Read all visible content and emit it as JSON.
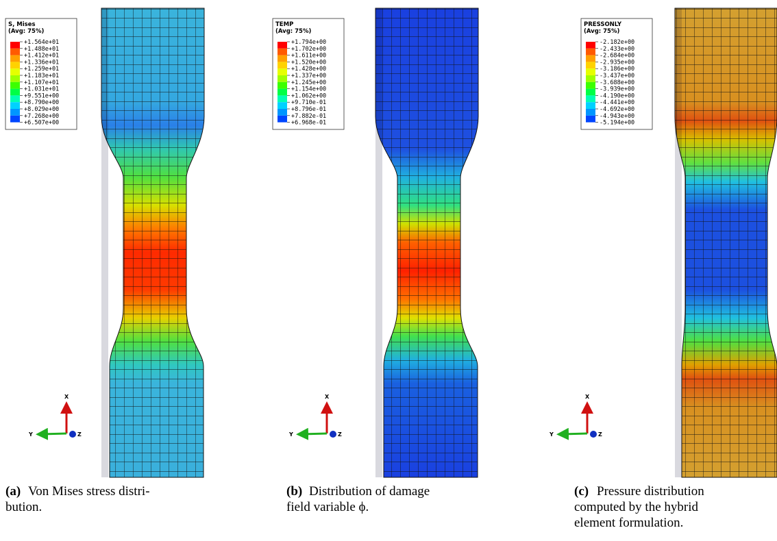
{
  "panels": [
    {
      "legend": {
        "title": "S, Mises",
        "subtitle": "(Avg: 75%)",
        "values": [
          "+1.564e+01",
          "+1.488e+01",
          "+1.412e+01",
          "+1.336e+01",
          "+1.259e+01",
          "+1.183e+01",
          "+1.107e+01",
          "+1.031e+01",
          "+9.551e+00",
          "+8.790e+00",
          "+8.029e+00",
          "+7.268e+00",
          "+6.507e+00"
        ]
      },
      "triad": {
        "x": "X",
        "y": "Y",
        "z": "Z"
      },
      "caption": {
        "label": "(a)",
        "lines": [
          "Von Mises stress distri-",
          "bution."
        ]
      }
    },
    {
      "legend": {
        "title": "TEMP",
        "subtitle": "(Avg: 75%)",
        "values": [
          "+1.794e+00",
          "+1.702e+00",
          "+1.611e+00",
          "+1.520e+00",
          "+1.428e+00",
          "+1.337e+00",
          "+1.245e+00",
          "+1.154e+00",
          "+1.062e+00",
          "+9.710e-01",
          "+8.796e-01",
          "+7.882e-01",
          "+6.968e-01"
        ]
      },
      "triad": {
        "x": "X",
        "y": "Y",
        "z": "Z"
      },
      "caption": {
        "label": "(b)",
        "lines": [
          "Distribution of damage",
          "field variable ϕ."
        ]
      }
    },
    {
      "legend": {
        "title": "PRESSONLY",
        "subtitle": "(Avg: 75%)",
        "values": [
          "-2.182e+00",
          "-2.433e+00",
          "-2.684e+00",
          "-2.935e+00",
          "-3.186e+00",
          "-3.437e+00",
          "-3.688e+00",
          "-3.939e+00",
          "-4.190e+00",
          "-4.441e+00",
          "-4.692e+00",
          "-4.943e+00",
          "-5.194e+00"
        ]
      },
      "triad": {
        "x": "X",
        "y": "Y",
        "z": "Z"
      },
      "caption": {
        "label": "(c)",
        "lines": [
          "Pressure distribution",
          "computed by the hybrid",
          "element formulation."
        ]
      }
    }
  ]
}
